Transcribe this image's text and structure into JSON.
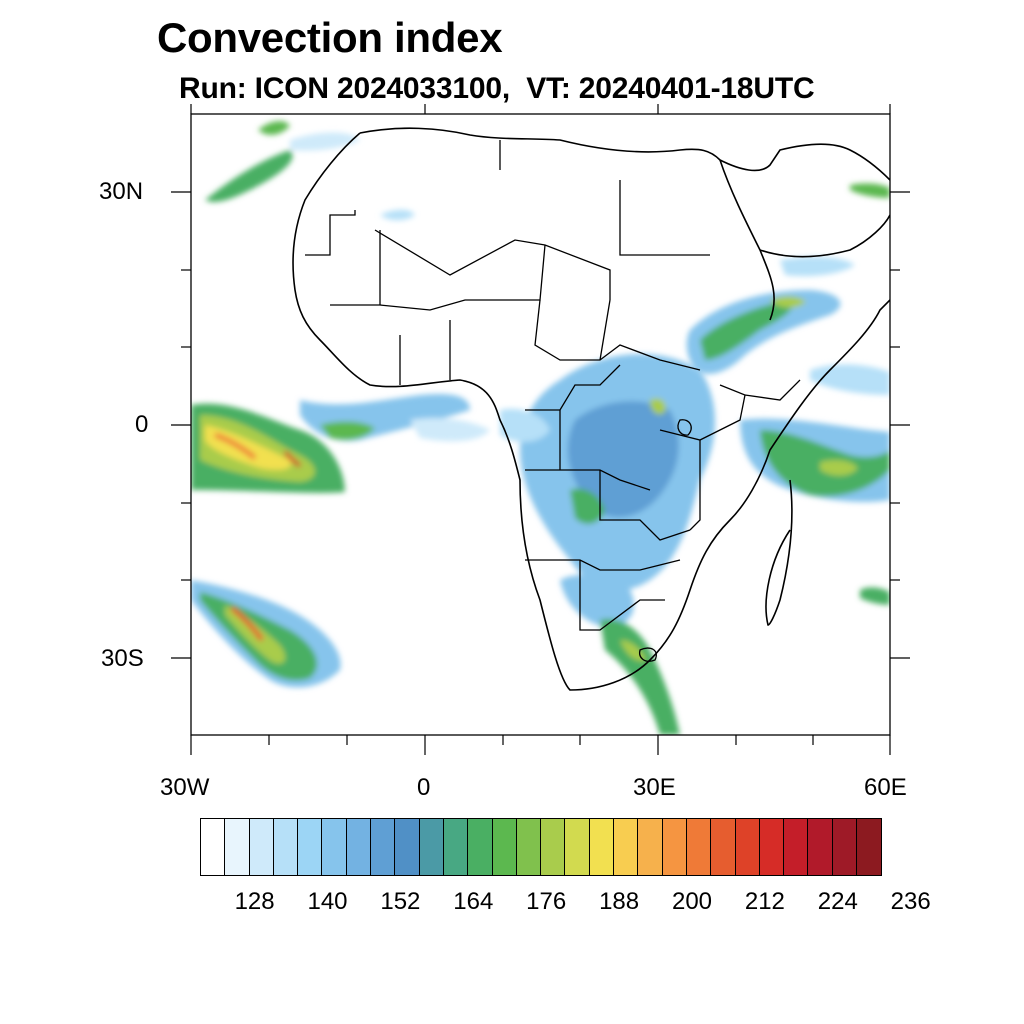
{
  "title": "Convection index",
  "subtitle": "Run: ICON 2024033100,  VT: 20240401-18UTC",
  "axes": {
    "y_labels": [
      {
        "text": "30N",
        "lat": 30
      },
      {
        "text": "0",
        "lat": 0
      },
      {
        "text": "30S",
        "lat": -30
      }
    ],
    "x_labels": [
      {
        "text": "30W",
        "lon": -30
      },
      {
        "text": "0",
        "lon": 0
      },
      {
        "text": "30E",
        "lon": 30
      },
      {
        "text": "60E",
        "lon": 60
      }
    ]
  },
  "colorbar": {
    "colors": [
      "#ffffff",
      "#e8f5fd",
      "#cfeafa",
      "#b6e0f8",
      "#9cd5f5",
      "#86c4ec",
      "#73b2e2",
      "#5f9fd4",
      "#5090c6",
      "#4b9aa6",
      "#48a883",
      "#4aaf63",
      "#5cb84f",
      "#80c14d",
      "#a9cc4c",
      "#d2da4f",
      "#f2e050",
      "#f8cd50",
      "#f6b14c",
      "#f59541",
      "#ef7a37",
      "#e65d2f",
      "#de4228",
      "#d62c27",
      "#c41e29",
      "#b11a2a",
      "#9e1a27",
      "#8c1a20"
    ],
    "labels": [
      "128",
      "140",
      "152",
      "164",
      "176",
      "188",
      "200",
      "212",
      "224",
      "236"
    ]
  }
}
